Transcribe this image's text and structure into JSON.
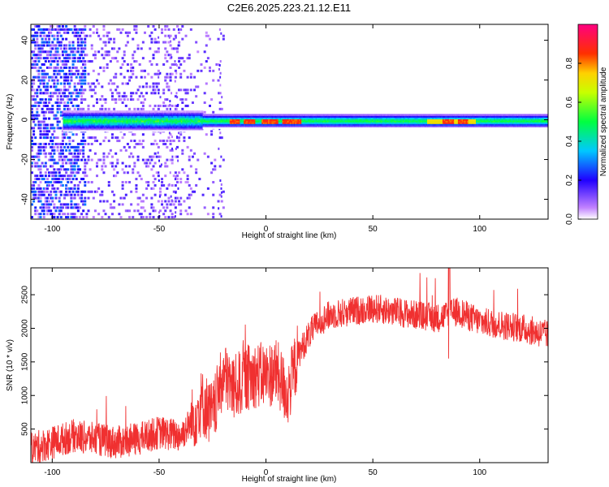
{
  "title": "C2E6.2025.223.21.12.E11",
  "colors": {
    "snr_line": "#f03030",
    "background": "#ffffff",
    "axis": "#000000"
  },
  "chart_data": [
    {
      "type": "heatmap",
      "title": "",
      "xlabel": "Height of straight line (km)",
      "ylabel": "Frequency (Hz)",
      "xlim": [
        -110,
        132
      ],
      "ylim": [
        -50,
        48
      ],
      "xticks": [
        -100,
        -50,
        0,
        50,
        100
      ],
      "yticks": [
        -40,
        -20,
        0,
        20,
        40
      ],
      "colorbar": {
        "label": "Normalized spectral amplitude",
        "range": [
          0.0,
          1.0
        ],
        "ticks": [
          0.0,
          0.2,
          0.4,
          0.6,
          0.8
        ],
        "colormap": "rainbow (white-violet-blue-cyan-green-yellow-red-magenta)"
      },
      "grid": false,
      "description_features": {
        "main_band_center_hz": 0,
        "hot_spots_km": [
          -15,
          -8,
          0,
          3,
          10,
          14,
          85,
          92
        ]
      }
    },
    {
      "type": "line",
      "title": "",
      "xlabel": "Height of straight line (km)",
      "ylabel": "SNR (10 * v/v)",
      "xlim": [
        -110,
        132
      ],
      "ylim": [
        0,
        2900
      ],
      "xticks": [
        -100,
        -50,
        0,
        50,
        100
      ],
      "yticks": [
        500,
        1000,
        1500,
        2000,
        2500
      ],
      "grid": false,
      "series": [
        {
          "x": [
            -110,
            -100,
            -90,
            -80,
            -70,
            -60,
            -50,
            -40,
            -35,
            -30,
            -25,
            -20,
            -15,
            -10,
            -5,
            0,
            5,
            10,
            15,
            20,
            25,
            30,
            40,
            50,
            60,
            70,
            80,
            85,
            90,
            100,
            110,
            120,
            132
          ],
          "values": [
            200,
            300,
            400,
            350,
            300,
            350,
            450,
            400,
            600,
            900,
            700,
            1300,
            1100,
            1250,
            1300,
            1300,
            1350,
            1000,
            1600,
            1900,
            2100,
            2200,
            2250,
            2300,
            2250,
            2200,
            2150,
            2200,
            2250,
            2100,
            2050,
            2000,
            1900
          ]
        }
      ]
    }
  ]
}
